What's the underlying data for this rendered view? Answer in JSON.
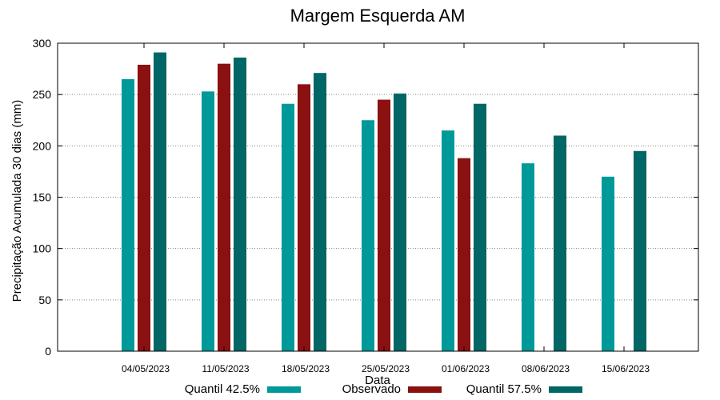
{
  "chart_data": {
    "type": "bar",
    "title": "Margem Esquerda AM",
    "xlabel": "Data",
    "ylabel": "Precipitação Acumulada 30 dias (mm)",
    "ylim": [
      0,
      300
    ],
    "yticks": [
      0,
      50,
      100,
      150,
      200,
      250,
      300
    ],
    "grid": "y-dotted",
    "legend_position": "bottom",
    "categories": [
      "04/05/2023",
      "11/05/2023",
      "18/05/2023",
      "25/05/2023",
      "01/06/2023",
      "08/06/2023",
      "15/06/2023"
    ],
    "series": [
      {
        "name": "Quantil 42.5%",
        "color": "#009999",
        "values": [
          265,
          253,
          241,
          225,
          215,
          183,
          170
        ]
      },
      {
        "name": "Observado",
        "color": "#8b1010",
        "values": [
          279,
          280,
          260,
          245,
          188,
          null,
          null
        ]
      },
      {
        "name": "Quantil 57.5%",
        "color": "#006666",
        "values": [
          291,
          286,
          271,
          251,
          241,
          210,
          195
        ]
      }
    ]
  }
}
